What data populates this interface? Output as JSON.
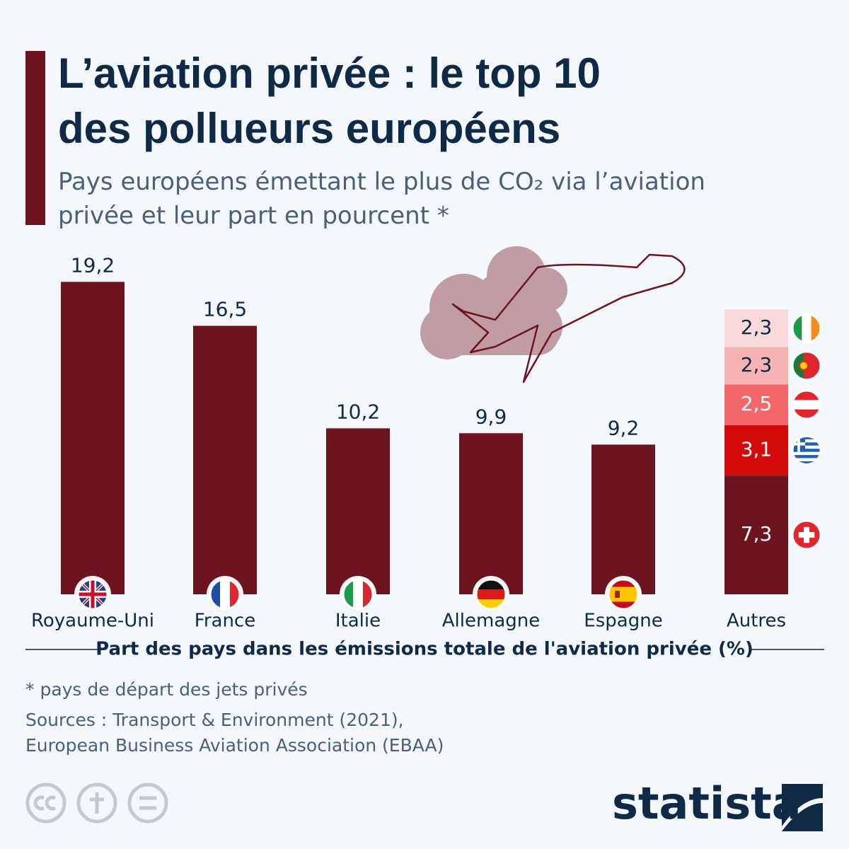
{
  "chart_data": {
    "type": "bar",
    "stacked": true,
    "title": [
      "L’aviation privée : le top 10",
      "des pollueurs européens"
    ],
    "subtitle": [
      "Pays européens émettant le plus de CO₂ via l’aviation",
      "privée et leur part en pourcent *"
    ],
    "categories": [
      "Royaume-Uni",
      "France",
      "Italie",
      "Allemagne",
      "Espagne",
      "Autres"
    ],
    "series": [
      {
        "color": "#6e1420",
        "values": [
          19.2,
          16.5,
          10.2,
          9.9,
          9.2,
          7.3
        ],
        "value_labels": [
          "19,2",
          "16,5",
          "10,2",
          "9,9",
          "9,2",
          "7,3"
        ]
      },
      {
        "color": "#d40a0a",
        "values": [
          null,
          null,
          null,
          null,
          null,
          3.1
        ],
        "value_labels": [
          null,
          null,
          null,
          null,
          null,
          "3,1"
        ]
      },
      {
        "color": "#f2676a",
        "values": [
          null,
          null,
          null,
          null,
          null,
          2.5
        ],
        "value_labels": [
          null,
          null,
          null,
          null,
          null,
          "2,5"
        ]
      },
      {
        "color": "#f5b3b4",
        "values": [
          null,
          null,
          null,
          null,
          null,
          2.3
        ],
        "value_labels": [
          null,
          null,
          null,
          null,
          null,
          "2,3"
        ]
      },
      {
        "color": "#f9d9da",
        "values": [
          null,
          null,
          null,
          null,
          null,
          2.3
        ],
        "value_labels": [
          null,
          null,
          null,
          null,
          null,
          "2,3"
        ]
      }
    ],
    "x_label": "Part des pays dans les émissions totale de l'aviation privée (%)",
    "notes": [
      "* pays de départ des jets privés",
      "Sources : Transport & Environment (2021),",
      "European Business Aviation Association (EBAA)"
    ],
    "brand": "statista"
  }
}
